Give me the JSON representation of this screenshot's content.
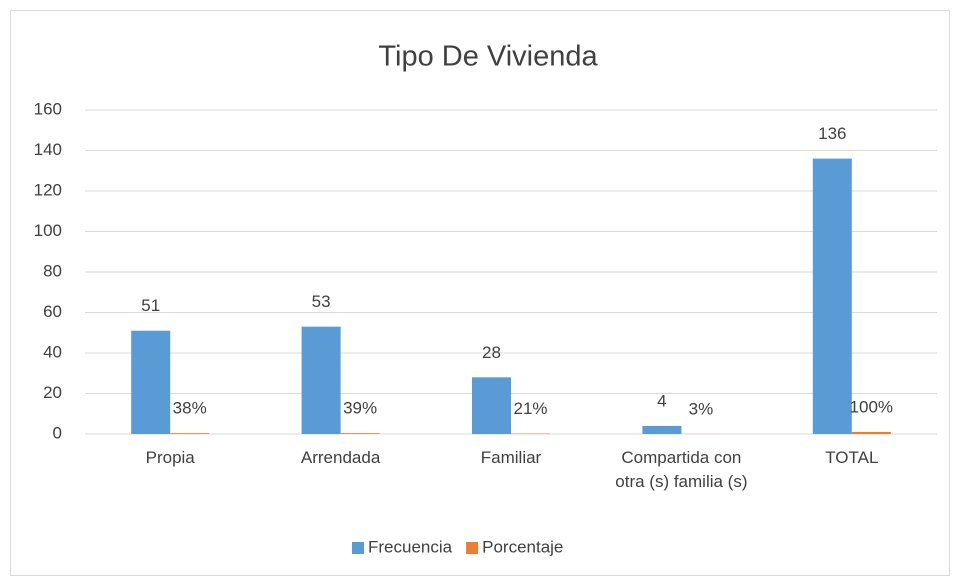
{
  "chart_data": {
    "type": "bar",
    "title": "Tipo De Vivienda",
    "categories": [
      "Propia",
      "Arrendada",
      "Familiar",
      "Compartida con otra (s) familia (s)",
      "TOTAL"
    ],
    "series": [
      {
        "name": "Frecuencia",
        "color": "#5b9bd5",
        "values": [
          51,
          53,
          28,
          4,
          136
        ]
      },
      {
        "name": "Porcentaje",
        "color": "#ed7d31",
        "values": [
          0.38,
          0.39,
          0.21,
          0.03,
          1
        ],
        "value_labels": [
          "38%",
          "39%",
          "21%",
          "3%",
          "100%"
        ]
      }
    ],
    "ylim": [
      0,
      160
    ],
    "yticks": [
      0,
      20,
      40,
      60,
      80,
      100,
      120,
      140,
      160
    ],
    "grid": true,
    "legend": "bottom"
  }
}
